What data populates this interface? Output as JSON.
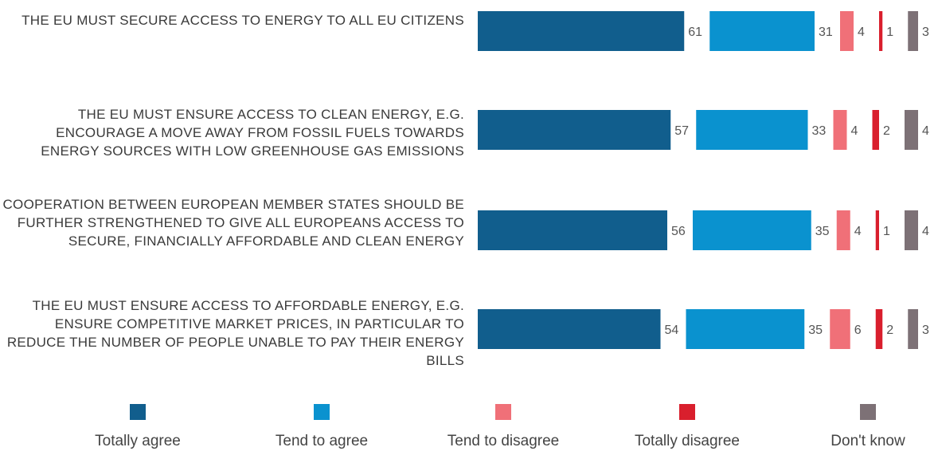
{
  "chart_data": {
    "type": "bar",
    "orientation": "horizontal",
    "layout": "clustered-in-row",
    "categories": [
      "THE EU MUST SECURE ACCESS TO ENERGY TO ALL EU CITIZENS",
      "THE EU MUST ENSURE ACCESS TO CLEAN ENERGY, E.G. ENCOURAGE A MOVE AWAY FROM FOSSIL FUELS TOWARDS ENERGY SOURCES WITH LOW GREENHOUSE GAS EMISSIONS",
      "COOPERATION BETWEEN EUROPEAN MEMBER STATES SHOULD BE FURTHER STRENGTHENED TO GIVE ALL EUROPEANS ACCESS TO SECURE, FINANCIALLY AFFORDABLE AND CLEAN ENERGY",
      "THE EU MUST ENSURE ACCESS TO AFFORDABLE ENERGY, E.G. ENSURE COMPETITIVE MARKET PRICES, IN PARTICULAR TO REDUCE THE NUMBER OF PEOPLE UNABLE TO PAY THEIR ENERGY BILLS"
    ],
    "series": [
      {
        "name": "Totally agree",
        "color": "#115e8d",
        "values": [
          61,
          57,
          56,
          54
        ]
      },
      {
        "name": "Tend to agree",
        "color": "#0a92cf",
        "values": [
          31,
          33,
          35,
          35
        ]
      },
      {
        "name": "Tend to disagree",
        "color": "#f07078",
        "values": [
          4,
          4,
          4,
          6
        ]
      },
      {
        "name": "Totally disagree",
        "color": "#d91f2d",
        "values": [
          1,
          2,
          1,
          2
        ]
      },
      {
        "name": "Don't know",
        "color": "#7d7176",
        "values": [
          3,
          4,
          4,
          3
        ]
      }
    ],
    "legend_position": "bottom",
    "grid": false,
    "data_labels": true
  }
}
